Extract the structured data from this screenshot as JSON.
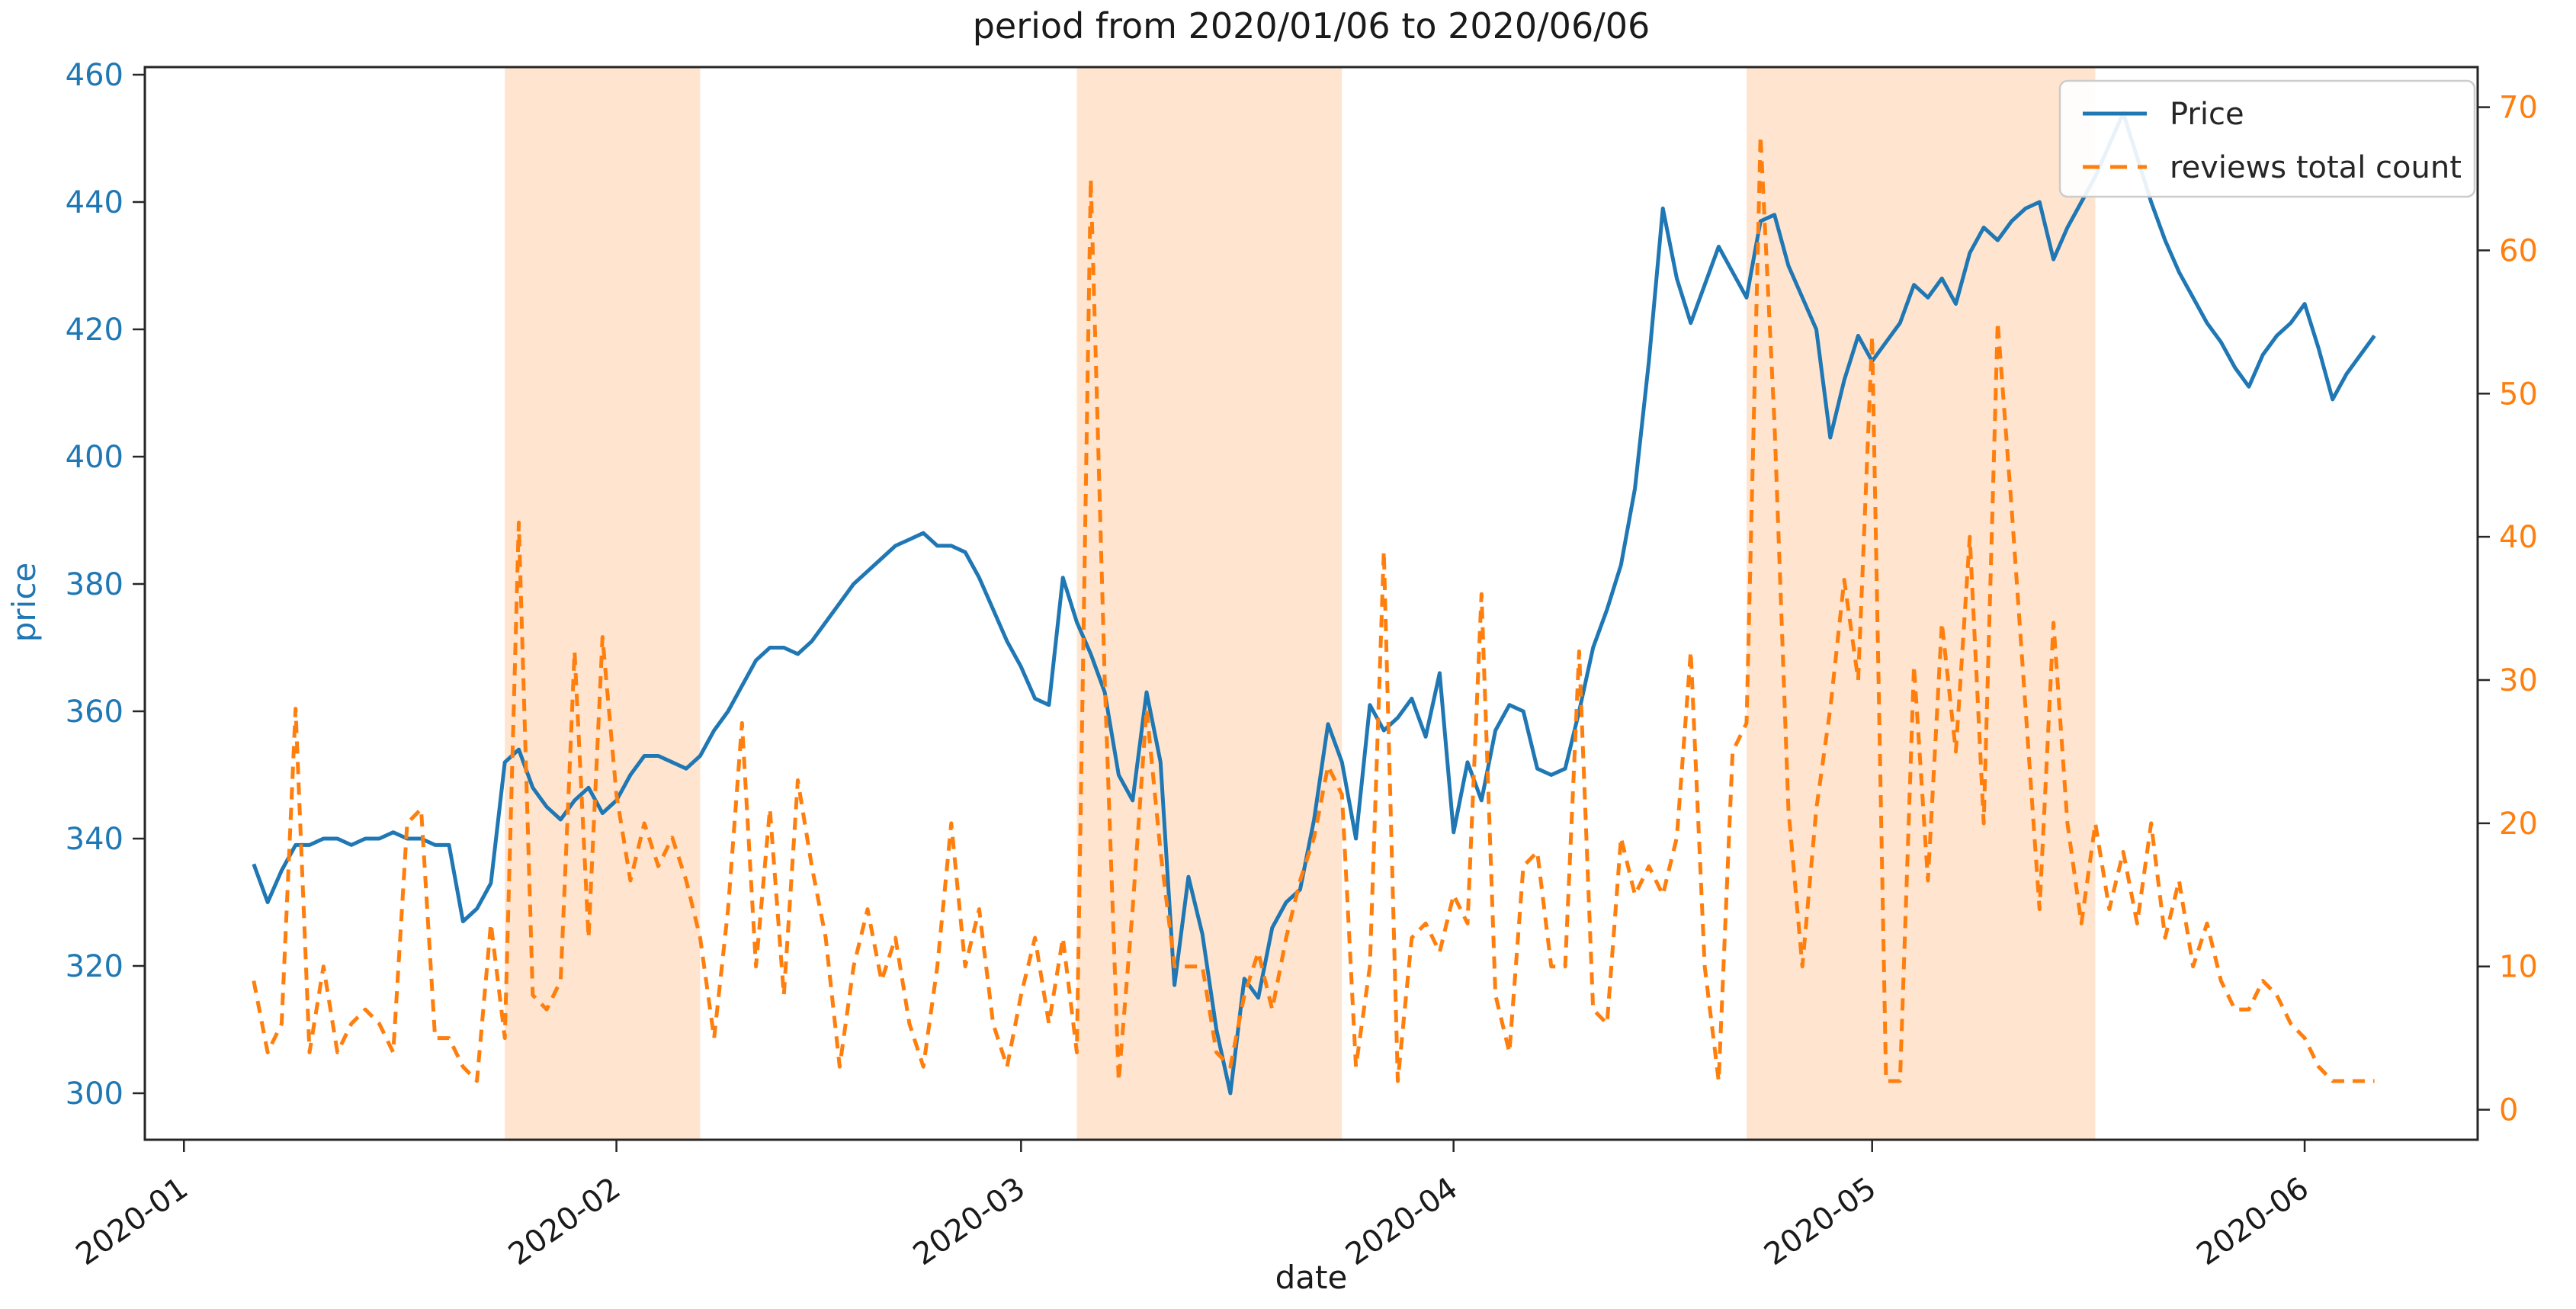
{
  "figure": {
    "title": "period from 2020/01/06 to 2020/06/06",
    "xlabel": "date",
    "ylabel_left": "price"
  },
  "chart_data": {
    "type": "line",
    "title": "period from 2020/01/06 to 2020/06/06",
    "xlabel": "date",
    "ylabel_left": "price",
    "ylabel_right": "",
    "legend_position": "upper right",
    "grid": false,
    "colors": {
      "price_line": "#1f77b4",
      "reviews_line": "#ff7f0e",
      "band_fill": "#ffe5cf",
      "spine": "#262626",
      "left_tick_color": "#1f77b4",
      "right_tick_color": "#ff7f0e",
      "x_tick_color": "#1a1a1a",
      "legend_border": "#cccccc"
    },
    "x_start": "2020-01-06",
    "x_end": "2020-06-06",
    "frequency": "daily",
    "xlim_days_from_jan1": [
      -2.8,
      164.4
    ],
    "ylim_left": [
      292.7,
      461.2
    ],
    "ylim_right": [
      -2.1,
      72.8
    ],
    "x_ticks": [
      {
        "date": "2020-01-01",
        "label": "2020-01"
      },
      {
        "date": "2020-02-01",
        "label": "2020-02"
      },
      {
        "date": "2020-03-01",
        "label": "2020-03"
      },
      {
        "date": "2020-04-01",
        "label": "2020-04"
      },
      {
        "date": "2020-05-01",
        "label": "2020-05"
      },
      {
        "date": "2020-06-01",
        "label": "2020-06"
      }
    ],
    "y_left_ticks": [
      300,
      320,
      340,
      360,
      380,
      400,
      420,
      440,
      460
    ],
    "y_right_ticks": [
      0,
      10,
      20,
      30,
      40,
      50,
      60,
      70
    ],
    "highlight_bands": [
      {
        "start": "2020-01-24",
        "end": "2020-02-07"
      },
      {
        "start": "2020-03-05",
        "end": "2020-03-24"
      },
      {
        "start": "2020-04-22",
        "end": "2020-05-17"
      }
    ],
    "legend": [
      {
        "label": "Price",
        "color": "#1f77b4",
        "style": "solid"
      },
      {
        "label": "reviews total count",
        "color": "#ff7f0e",
        "style": "dashed"
      }
    ],
    "series": [
      {
        "name": "Price",
        "axis": "left",
        "values": [
          336,
          330,
          335,
          339,
          339,
          340,
          340,
          339,
          340,
          340,
          341,
          340,
          340,
          339,
          339,
          327,
          329,
          333,
          352,
          354,
          348,
          345,
          343,
          346,
          348,
          344,
          346,
          350,
          353,
          353,
          352,
          351,
          353,
          357,
          360,
          364,
          368,
          370,
          370,
          369,
          371,
          374,
          377,
          380,
          382,
          384,
          386,
          387,
          388,
          386,
          386,
          385,
          381,
          376,
          371,
          367,
          362,
          361,
          381,
          374,
          369,
          363,
          350,
          346,
          363,
          352,
          317,
          334,
          325,
          310,
          300,
          318,
          315,
          326,
          330,
          332,
          343,
          358,
          352,
          340,
          361,
          357,
          359,
          362,
          356,
          366,
          341,
          352,
          346,
          357,
          361,
          360,
          351,
          350,
          351,
          360,
          370,
          376,
          383,
          395,
          415,
          439,
          428,
          421,
          427,
          433,
          429,
          425,
          437,
          438,
          430,
          425,
          420,
          403,
          412,
          419,
          415,
          418,
          421,
          427,
          425,
          428,
          424,
          432,
          436,
          434,
          437,
          439,
          440,
          431,
          436,
          440,
          444,
          449,
          454,
          447,
          440,
          434,
          429,
          425,
          421,
          418,
          414,
          411,
          416,
          419,
          421,
          424,
          417,
          409,
          413,
          416,
          419
        ]
      },
      {
        "name": "reviews total count",
        "axis": "right",
        "values": [
          9,
          4,
          6,
          28,
          4,
          10,
          4,
          6,
          7,
          6,
          4,
          20,
          21,
          5,
          5,
          3,
          2,
          13,
          5,
          41,
          8,
          7,
          9,
          32,
          12,
          33,
          22,
          16,
          20,
          17,
          19,
          16,
          12,
          5,
          14,
          27,
          10,
          21,
          8,
          23,
          17,
          12,
          3,
          10,
          14,
          9,
          12,
          6,
          3,
          10,
          20,
          10,
          14,
          6,
          3,
          8,
          12,
          6,
          12,
          4,
          65,
          30,
          2,
          14,
          28,
          18,
          10,
          10,
          10,
          4,
          3,
          8,
          11,
          7,
          12,
          16,
          19,
          24,
          22,
          3,
          10,
          39,
          2,
          12,
          13,
          11,
          15,
          13,
          36,
          8,
          4,
          17,
          18,
          10,
          10,
          32,
          7,
          6,
          19,
          15,
          17,
          15,
          19,
          32,
          10,
          2,
          25,
          27,
          68,
          48,
          21,
          10,
          21,
          28,
          37,
          30,
          54,
          2,
          2,
          31,
          16,
          34,
          25,
          40,
          20,
          55,
          42,
          28,
          14,
          34,
          20,
          13,
          20,
          14,
          18,
          13,
          20,
          12,
          16,
          10,
          13,
          9,
          7,
          7,
          9,
          8,
          6,
          5,
          3,
          2,
          2,
          2,
          2
        ]
      }
    ]
  }
}
